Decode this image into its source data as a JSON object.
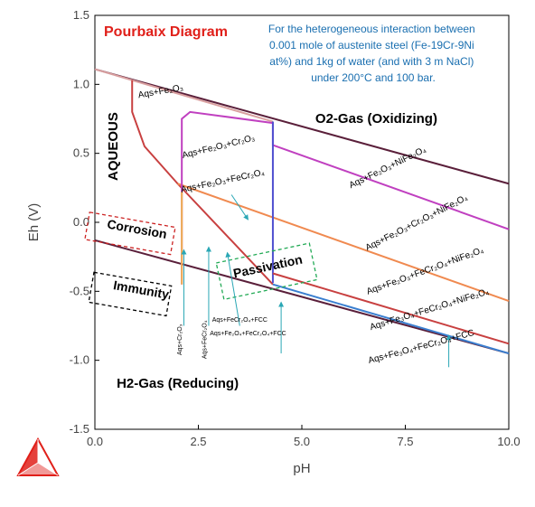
{
  "chart_data": {
    "type": "line",
    "title": "Pourbaix Diagram",
    "subtitle_lines": [
      "For the heterogeneous interaction between",
      "0.001 mole of  austenite steel (Fe-19Cr-9Ni",
      "at%) and 1kg of water (and with 3 m NaCl)",
      "under 200°C and 100 bar."
    ],
    "xlabel": "pH",
    "ylabel": "Eh (V)",
    "xlim": [
      0,
      10
    ],
    "ylim": [
      -1.5,
      1.5
    ],
    "xticks": [
      "0.0",
      "2.5",
      "5.0",
      "7.5",
      "10.0"
    ],
    "yticks": [
      "1.5",
      "1.0",
      "0.5",
      "0.0",
      "-0.5",
      "-1.0",
      "-1.5"
    ],
    "series": [
      {
        "color": "#5a1f3a",
        "x": [
          0,
          10
        ],
        "y": [
          1.11,
          0.28
        ]
      },
      {
        "color": "#5a1f3a",
        "x": [
          0,
          10
        ],
        "y": [
          -0.13,
          -0.95
        ]
      },
      {
        "color": "#d9a0a0",
        "x": [
          0,
          0.9,
          4.3
        ],
        "y": [
          1.11,
          1.03,
          0.73
        ]
      },
      {
        "color": "#c84040",
        "x": [
          0.9,
          0.9,
          1.2,
          2.0,
          4.3
        ],
        "y": [
          1.03,
          0.8,
          0.55,
          0.28,
          -0.45
        ]
      },
      {
        "color": "#f08a50",
        "x": [
          2.0,
          10
        ],
        "y": [
          0.28,
          -0.57
        ]
      },
      {
        "color": "#c040c0",
        "x": [
          2.1,
          2.1,
          2.3,
          4.3,
          4.3,
          10
        ],
        "y": [
          -0.45,
          0.75,
          0.8,
          0.72,
          0.56,
          -0.05
        ]
      },
      {
        "color": "#5050d0",
        "x": [
          4.3,
          4.3
        ],
        "y": [
          0.73,
          -0.44
        ]
      },
      {
        "color": "#c84040",
        "x": [
          4.3,
          10
        ],
        "y": [
          -0.37,
          -0.88
        ]
      },
      {
        "color": "#3a7fd0",
        "x": [
          4.3,
          10
        ],
        "y": [
          -0.45,
          -0.95
        ]
      },
      {
        "color": "#f0b050",
        "x": [
          2.1,
          2.1
        ],
        "y": [
          0.22,
          -0.45
        ]
      }
    ],
    "region_labels": [
      {
        "text": "O2-Gas (Oxidizing)",
        "x": 6.8,
        "y": 0.72
      },
      {
        "text": "H2-Gas (Reducing)",
        "x": 2.0,
        "y": -1.2
      },
      {
        "text": "AQUEOUS",
        "x": 0.55,
        "y": 0.55
      },
      {
        "text": "Corrosion",
        "x": 1.0,
        "y": -0.08
      },
      {
        "text": "Immunity",
        "x": 1.1,
        "y": -0.52
      },
      {
        "text": "Passivation",
        "x": 4.2,
        "y": -0.35
      }
    ],
    "phase_labels": [
      {
        "text": "Aqs+Fe₂O₃",
        "x": 1.6,
        "y": 0.93,
        "rot": -10
      },
      {
        "text": "Aqs+Fe₂O₃+Cr₂O₃",
        "x": 3.0,
        "y": 0.53,
        "rot": -14
      },
      {
        "text": "Aqs+Fe₂O₃+FeCr₂O₄",
        "x": 3.1,
        "y": 0.28,
        "rot": -12
      },
      {
        "text": "Aqs+Fe₂O₃+NiFe₂O₄",
        "x": 7.1,
        "y": 0.38,
        "rot": -26
      },
      {
        "text": "Aqs+Fe₂O₃+Cr₂O₃+NiFe₂O₄",
        "x": 7.8,
        "y": -0.02,
        "rot": -27
      },
      {
        "text": "Aqs+Fe₂O₃+FeCr₂O₄+NiFe₂O₄",
        "x": 8.0,
        "y": -0.37,
        "rot": -20
      },
      {
        "text": "Aqs+Fe₃O₄+FeCr₂O₄+NiFe₂O₄",
        "x": 8.1,
        "y": -0.65,
        "rot": -17
      },
      {
        "text": "Aqs+Fe₃O₄+FeCr₂O₄+FCC",
        "x": 7.9,
        "y": -0.92,
        "rot": -15
      },
      {
        "text": "Aqs+FeCr₂O₄+FCC",
        "x": 3.5,
        "y": -0.72,
        "rot": 0
      },
      {
        "text": "Aqs+Fe₂O₄+FeCr₂O₄+FCC",
        "x": 3.7,
        "y": -0.82,
        "rot": 0
      },
      {
        "text": "Aqs+Cr₂O₃",
        "x": 2.1,
        "y": -0.85,
        "rot": -90
      },
      {
        "text": "Aqs+FeCr₂O₄",
        "x": 2.7,
        "y": -0.85,
        "rot": -90
      }
    ],
    "grid": false,
    "legend": "none"
  },
  "colors": {
    "title": "#e0201a",
    "subtitle": "#1a6fb0",
    "corrosion": "#cc2222",
    "passivation": "#22aa55",
    "immunity": "#000000",
    "arrow": "#2aa7b5",
    "logo": "#e0201a"
  },
  "logo_icon": "triangle-logo-icon"
}
